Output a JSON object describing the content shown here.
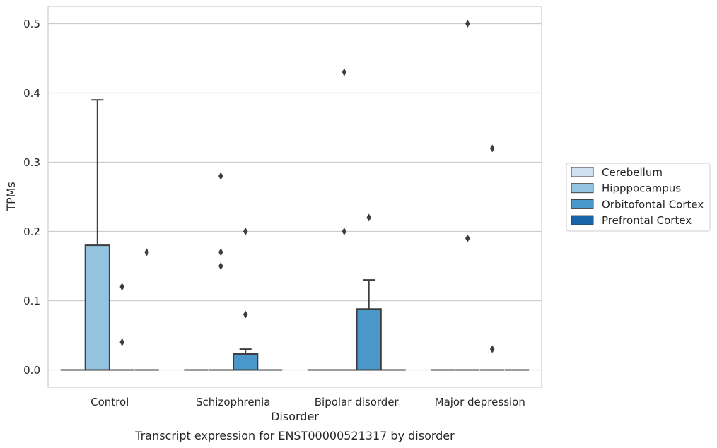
{
  "chart_data": {
    "type": "box",
    "title": "",
    "caption": "Transcript expression for ENST00000521317 by disorder",
    "xlabel": "Disorder",
    "ylabel": "TPMs",
    "ylim": [
      -0.025,
      0.525
    ],
    "yticks": [
      0.0,
      0.1,
      0.2,
      0.3,
      0.4,
      0.5
    ],
    "ytick_labels": [
      "0.0",
      "0.1",
      "0.2",
      "0.3",
      "0.4",
      "0.5"
    ],
    "grid": "horizontal",
    "legend_position": "right, outside plot",
    "categories": [
      "Control",
      "Schizophrenia",
      "Bipolar disorder",
      "Major depression"
    ],
    "series": [
      {
        "name": "Cerebellum",
        "color": "#d0e1f2",
        "boxes": [
          {
            "q1": 0.0,
            "median": 0.0,
            "q3": 0.0,
            "whislo": 0.0,
            "whishi": 0.0,
            "fliers": []
          },
          {
            "q1": 0.0,
            "median": 0.0,
            "q3": 0.0,
            "whislo": 0.0,
            "whishi": 0.0,
            "fliers": []
          },
          {
            "q1": 0.0,
            "median": 0.0,
            "q3": 0.0,
            "whislo": 0.0,
            "whishi": 0.0,
            "fliers": []
          },
          {
            "q1": 0.0,
            "median": 0.0,
            "q3": 0.0,
            "whislo": 0.0,
            "whishi": 0.0,
            "fliers": []
          }
        ]
      },
      {
        "name": "Hipppocampus",
        "color": "#94c4df",
        "boxes": [
          {
            "q1": 0.0,
            "median": 0.0,
            "q3": 0.18,
            "whislo": 0.0,
            "whishi": 0.39,
            "fliers": []
          },
          {
            "q1": 0.0,
            "median": 0.0,
            "q3": 0.0,
            "whislo": 0.0,
            "whishi": 0.0,
            "fliers": [
              0.28,
              0.17,
              0.15
            ]
          },
          {
            "q1": 0.0,
            "median": 0.0,
            "q3": 0.0,
            "whislo": 0.0,
            "whishi": 0.0,
            "fliers": [
              0.43,
              0.2
            ]
          },
          {
            "q1": 0.0,
            "median": 0.0,
            "q3": 0.0,
            "whislo": 0.0,
            "whishi": 0.0,
            "fliers": [
              0.5,
              0.19
            ]
          }
        ]
      },
      {
        "name": "Orbitofontal Cortex",
        "color": "#4a98c9",
        "boxes": [
          {
            "q1": 0.0,
            "median": 0.0,
            "q3": 0.0,
            "whislo": 0.0,
            "whishi": 0.0,
            "fliers": [
              0.12,
              0.04
            ]
          },
          {
            "q1": 0.0,
            "median": 0.0,
            "q3": 0.023,
            "whislo": 0.0,
            "whishi": 0.03,
            "fliers": [
              0.2,
              0.08
            ]
          },
          {
            "q1": 0.0,
            "median": 0.0,
            "q3": 0.088,
            "whislo": 0.0,
            "whishi": 0.13,
            "fliers": [
              0.22
            ]
          },
          {
            "q1": 0.0,
            "median": 0.0,
            "q3": 0.0,
            "whislo": 0.0,
            "whishi": 0.0,
            "fliers": [
              0.32,
              0.03
            ]
          }
        ]
      },
      {
        "name": "Prefrontal Cortex",
        "color": "#1764ab",
        "boxes": [
          {
            "q1": 0.0,
            "median": 0.0,
            "q3": 0.0,
            "whislo": 0.0,
            "whishi": 0.0,
            "fliers": [
              0.17
            ]
          },
          {
            "q1": 0.0,
            "median": 0.0,
            "q3": 0.0,
            "whislo": 0.0,
            "whishi": 0.0,
            "fliers": []
          },
          {
            "q1": 0.0,
            "median": 0.0,
            "q3": 0.0,
            "whislo": 0.0,
            "whishi": 0.0,
            "fliers": []
          },
          {
            "q1": 0.0,
            "median": 0.0,
            "q3": 0.0,
            "whislo": 0.0,
            "whishi": 0.0,
            "fliers": []
          }
        ]
      }
    ]
  }
}
